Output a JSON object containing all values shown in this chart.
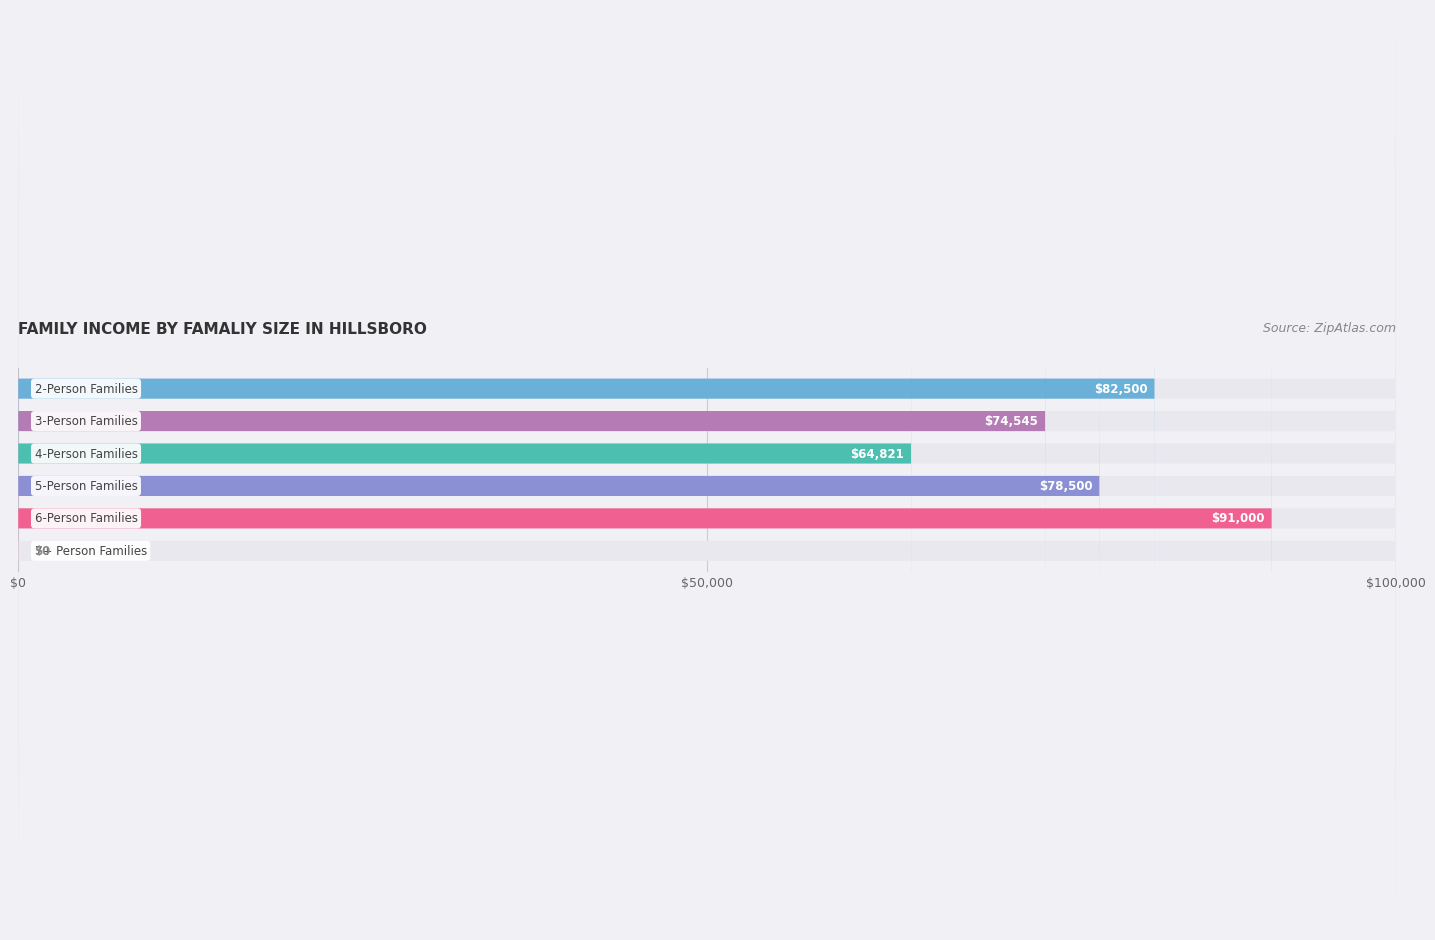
{
  "title": "FAMILY INCOME BY FAMALIY SIZE IN HILLSBORO",
  "source": "Source: ZipAtlas.com",
  "categories": [
    "2-Person Families",
    "3-Person Families",
    "4-Person Families",
    "5-Person Families",
    "6-Person Families",
    "7+ Person Families"
  ],
  "values": [
    82500,
    74545,
    64821,
    78500,
    91000,
    0
  ],
  "bar_colors": [
    "#6ab0d8",
    "#b57bb5",
    "#4dbfb0",
    "#8b8fd4",
    "#f06090",
    "#f5d5a8"
  ],
  "label_colors": [
    "#5a9ec8",
    "#a06aa0",
    "#3aafa0",
    "#7a7fc4",
    "#e05080",
    "#e0c098"
  ],
  "xlim": [
    0,
    100000
  ],
  "xticks": [
    0,
    50000,
    100000
  ],
  "xtick_labels": [
    "$0",
    "$50,000",
    "$100,000"
  ],
  "background_color": "#f0f0f5",
  "bar_bg_color": "#e8e8ee",
  "title_fontsize": 11,
  "source_fontsize": 9,
  "bar_height": 0.62,
  "value_labels": [
    "$82,500",
    "$74,545",
    "$64,821",
    "$78,500",
    "$91,000",
    "$0"
  ]
}
